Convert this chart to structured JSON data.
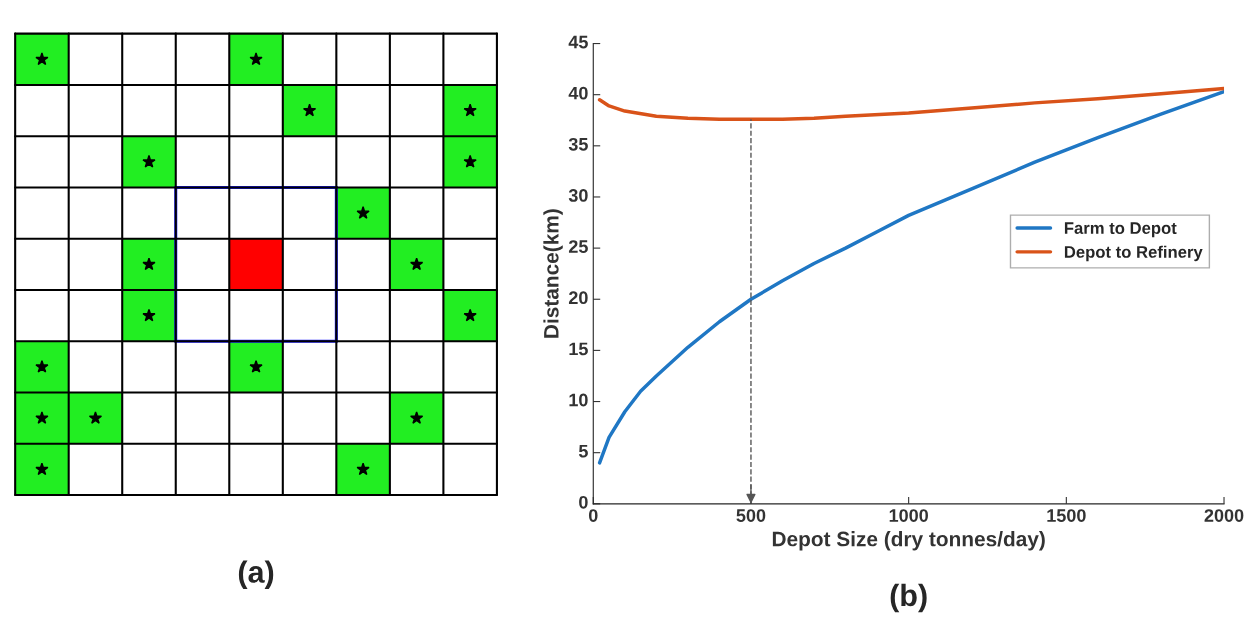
{
  "chart_data": [
    {
      "type": "other",
      "title": "(a)"
    },
    {
      "type": "line",
      "title": "(b)",
      "xlabel": "Depot Size (dry tonnes/day)",
      "ylabel": "Distance(km)",
      "xlim": [
        0,
        2000
      ],
      "xticks": [
        0,
        500,
        1000,
        1500,
        2000
      ],
      "ylim": [
        0,
        45
      ],
      "yticks": [
        0,
        5,
        10,
        15,
        20,
        25,
        30,
        35,
        40,
        45
      ],
      "grid": false,
      "legend": "right",
      "ref_lines": [
        {
          "axis": "x",
          "value": 500,
          "line_style": "dashed",
          "color": "#555555"
        }
      ],
      "series": [
        {
          "name": "Farm to Depot",
          "color": "#1f77c4",
          "x": [
            20,
            50,
            100,
            150,
            200,
            300,
            400,
            500,
            600,
            700,
            800,
            900,
            1000,
            1200,
            1400,
            1600,
            1800,
            2000
          ],
          "values": [
            4,
            6.5,
            9,
            11,
            12.5,
            15.3,
            17.8,
            20,
            21.8,
            23.5,
            25,
            26.6,
            28.2,
            30.8,
            33.4,
            35.8,
            38.1,
            40.3
          ]
        },
        {
          "name": "Depot to Refinery",
          "color": "#d95319",
          "x": [
            20,
            50,
            100,
            200,
            300,
            400,
            500,
            600,
            700,
            800,
            1000,
            1200,
            1400,
            1600,
            1800,
            2000
          ],
          "values": [
            39.5,
            38.9,
            38.4,
            37.9,
            37.7,
            37.6,
            37.6,
            37.6,
            37.7,
            37.9,
            38.2,
            38.7,
            39.2,
            39.6,
            40.1,
            40.6
          ]
        }
      ]
    }
  ]
}
